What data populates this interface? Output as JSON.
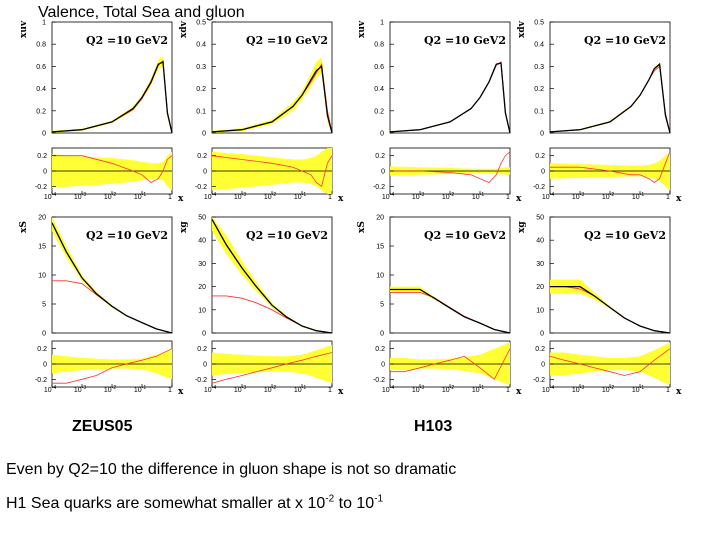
{
  "slide": {
    "title": "Valence, Total Sea and gluon",
    "fit_labels": [
      "ZEUS05",
      "H103"
    ],
    "note1": "Even by Q2=10 the difference in gluon shape is not so dramatic",
    "note2_pre": "H1 Sea quarks are somewhat smaller at  x 10",
    "note2_exp1": "-2",
    "note2_mid": " to 10",
    "note2_exp2": "-1"
  },
  "colors": {
    "band": "#ffff33",
    "central": "#000000",
    "comparison": "#ff3333"
  },
  "chart_data": [
    {
      "id": "zeus-xuv",
      "type": "line",
      "fit": "ZEUS05",
      "ylabel": "xuv",
      "q2_label": "Q2 =10 GeV2",
      "x_scale": "log",
      "xlim": [
        0.0001,
        1
      ],
      "ylim": [
        0,
        1
      ],
      "yticks": [
        0,
        0.2,
        0.4,
        0.6,
        0.8,
        1
      ],
      "x": [
        0.0001,
        0.001,
        0.01,
        0.05,
        0.1,
        0.2,
        0.35,
        0.5,
        0.7,
        1
      ],
      "central": [
        0.01,
        0.03,
        0.1,
        0.22,
        0.32,
        0.46,
        0.62,
        0.64,
        0.18,
        0.0
      ],
      "band_low": [
        0.0,
        0.02,
        0.09,
        0.2,
        0.3,
        0.43,
        0.58,
        0.59,
        0.14,
        0.0
      ],
      "band_high": [
        0.02,
        0.04,
        0.11,
        0.24,
        0.34,
        0.49,
        0.66,
        0.69,
        0.22,
        0.0
      ],
      "comparison": [
        0.01,
        0.03,
        0.1,
        0.21,
        0.31,
        0.45,
        0.61,
        0.65,
        0.19,
        0.0
      ],
      "ratio": {
        "ylim": [
          -0.3,
          0.3
        ],
        "yticks": [
          -0.2,
          0,
          0.2
        ],
        "band_low": [
          -0.22,
          -0.19,
          -0.17,
          -0.14,
          -0.12,
          -0.1,
          -0.1,
          -0.12,
          -0.2,
          -0.25
        ],
        "band_high": [
          0.22,
          0.19,
          0.17,
          0.14,
          0.12,
          0.1,
          0.1,
          0.12,
          0.2,
          0.25
        ],
        "comparison": [
          0.2,
          0.2,
          0.1,
          0.0,
          -0.05,
          -0.15,
          -0.1,
          0.0,
          0.15,
          0.2
        ]
      }
    },
    {
      "id": "zeus-xdv",
      "type": "line",
      "fit": "ZEUS05",
      "ylabel": "xdv",
      "q2_label": "Q2 =10 GeV2",
      "x_scale": "log",
      "xlim": [
        0.0001,
        1
      ],
      "ylim": [
        0,
        0.5
      ],
      "yticks": [
        0,
        0.1,
        0.2,
        0.3,
        0.4,
        0.5
      ],
      "x": [
        0.0001,
        0.001,
        0.01,
        0.05,
        0.1,
        0.2,
        0.3,
        0.45,
        0.7,
        1
      ],
      "central": [
        0.005,
        0.015,
        0.05,
        0.12,
        0.17,
        0.24,
        0.28,
        0.3,
        0.08,
        0.0
      ],
      "band_low": [
        0.0,
        0.008,
        0.04,
        0.1,
        0.15,
        0.21,
        0.25,
        0.27,
        0.05,
        0.0
      ],
      "band_high": [
        0.01,
        0.022,
        0.06,
        0.14,
        0.19,
        0.27,
        0.32,
        0.34,
        0.11,
        0.0
      ],
      "comparison": [
        0.005,
        0.015,
        0.05,
        0.12,
        0.17,
        0.23,
        0.27,
        0.31,
        0.1,
        0.0
      ],
      "ratio": {
        "ylim": [
          -0.3,
          0.3
        ],
        "yticks": [
          -0.2,
          0,
          0.2
        ],
        "band_low": [
          -0.25,
          -0.22,
          -0.18,
          -0.15,
          -0.15,
          -0.17,
          -0.2,
          -0.25,
          -0.3,
          -0.3
        ],
        "band_high": [
          0.25,
          0.22,
          0.18,
          0.15,
          0.15,
          0.17,
          0.2,
          0.25,
          0.3,
          0.3
        ],
        "comparison": [
          0.2,
          0.15,
          0.1,
          0.05,
          0.0,
          -0.05,
          -0.15,
          -0.2,
          0.1,
          0.2
        ]
      }
    },
    {
      "id": "h1-xuv",
      "type": "line",
      "fit": "H103",
      "ylabel": "xuv",
      "q2_label": "Q2 =10 GeV2",
      "x_scale": "log",
      "xlim": [
        0.0001,
        1
      ],
      "ylim": [
        0,
        1
      ],
      "yticks": [
        0,
        0.2,
        0.4,
        0.6,
        0.8,
        1
      ],
      "x": [
        0.0001,
        0.001,
        0.01,
        0.05,
        0.1,
        0.2,
        0.35,
        0.5,
        0.7,
        1
      ],
      "central": [
        0.01,
        0.03,
        0.1,
        0.22,
        0.32,
        0.46,
        0.62,
        0.63,
        0.18,
        0.0
      ],
      "band_low": [
        0.005,
        0.025,
        0.095,
        0.215,
        0.315,
        0.455,
        0.615,
        0.625,
        0.175,
        0.0
      ],
      "band_high": [
        0.015,
        0.035,
        0.105,
        0.225,
        0.325,
        0.465,
        0.625,
        0.635,
        0.185,
        0.0
      ],
      "comparison": [
        0.01,
        0.03,
        0.1,
        0.22,
        0.32,
        0.46,
        0.61,
        0.64,
        0.19,
        0.0
      ],
      "ratio": {
        "ylim": [
          -0.3,
          0.3
        ],
        "yticks": [
          -0.2,
          0,
          0.2
        ],
        "band_low": [
          -0.06,
          -0.05,
          -0.04,
          -0.03,
          -0.03,
          -0.03,
          -0.03,
          -0.04,
          -0.05,
          -0.05
        ],
        "band_high": [
          0.06,
          0.05,
          0.04,
          0.03,
          0.03,
          0.03,
          0.03,
          0.04,
          0.05,
          0.05
        ],
        "comparison": [
          0.0,
          0.0,
          -0.02,
          -0.05,
          -0.1,
          -0.15,
          -0.05,
          0.1,
          0.2,
          0.25
        ]
      }
    },
    {
      "id": "h1-xdv",
      "type": "line",
      "fit": "H103",
      "ylabel": "xdv",
      "q2_label": "Q2 =10 GeV2",
      "x_scale": "log",
      "xlim": [
        0.0001,
        1
      ],
      "ylim": [
        0,
        0.5
      ],
      "yticks": [
        0,
        0.1,
        0.2,
        0.3,
        0.4,
        0.5
      ],
      "x": [
        0.0001,
        0.001,
        0.01,
        0.05,
        0.1,
        0.2,
        0.3,
        0.45,
        0.7,
        1
      ],
      "central": [
        0.005,
        0.015,
        0.05,
        0.12,
        0.17,
        0.24,
        0.29,
        0.31,
        0.08,
        0.0
      ],
      "band_low": [
        0.003,
        0.012,
        0.046,
        0.115,
        0.165,
        0.235,
        0.283,
        0.303,
        0.07,
        0.0
      ],
      "band_high": [
        0.007,
        0.018,
        0.054,
        0.125,
        0.175,
        0.245,
        0.297,
        0.317,
        0.09,
        0.0
      ],
      "comparison": [
        0.005,
        0.015,
        0.05,
        0.12,
        0.17,
        0.24,
        0.28,
        0.3,
        0.09,
        0.0
      ],
      "ratio": {
        "ylim": [
          -0.3,
          0.3
        ],
        "yticks": [
          -0.2,
          0,
          0.2
        ],
        "band_low": [
          -0.1,
          -0.09,
          -0.08,
          -0.07,
          -0.07,
          -0.08,
          -0.1,
          -0.13,
          -0.2,
          -0.25
        ],
        "band_high": [
          0.1,
          0.09,
          0.08,
          0.07,
          0.07,
          0.08,
          0.1,
          0.13,
          0.2,
          0.25
        ],
        "comparison": [
          0.05,
          0.05,
          0.0,
          -0.05,
          -0.05,
          -0.1,
          -0.15,
          -0.1,
          0.1,
          0.25
        ]
      }
    },
    {
      "id": "zeus-xs",
      "type": "line",
      "fit": "ZEUS05",
      "ylabel": "xS",
      "q2_label": "Q2 =10 GeV2",
      "x_scale": "log",
      "xlim": [
        0.0001,
        1
      ],
      "ylim": [
        0,
        20
      ],
      "yticks": [
        0,
        5,
        10,
        15,
        20
      ],
      "x": [
        0.0001,
        0.0003,
        0.001,
        0.003,
        0.01,
        0.03,
        0.1,
        0.3,
        1
      ],
      "central": [
        19,
        14,
        9.5,
        6.8,
        4.6,
        3.0,
        1.8,
        0.7,
        0.0
      ],
      "band_low": [
        17.5,
        13,
        9.0,
        6.5,
        4.4,
        2.9,
        1.7,
        0.6,
        0.0
      ],
      "band_high": [
        20.5,
        15,
        10.0,
        7.1,
        4.8,
        3.1,
        1.9,
        0.8,
        0.0
      ],
      "comparison": [
        9,
        9,
        8.5,
        6.6,
        4.6,
        3.0,
        1.8,
        0.7,
        0.0
      ],
      "ratio": {
        "ylim": [
          -0.3,
          0.3
        ],
        "yticks": [
          -0.2,
          0,
          0.2
        ],
        "band_low": [
          -0.12,
          -0.1,
          -0.08,
          -0.07,
          -0.06,
          -0.06,
          -0.07,
          -0.12,
          -0.2
        ],
        "band_high": [
          0.12,
          0.1,
          0.08,
          0.07,
          0.06,
          0.06,
          0.07,
          0.12,
          0.2
        ],
        "comparison": [
          -0.25,
          -0.25,
          -0.2,
          -0.15,
          -0.05,
          0.0,
          0.05,
          0.1,
          0.2
        ]
      }
    },
    {
      "id": "zeus-xg",
      "type": "line",
      "fit": "ZEUS05",
      "ylabel": "xg",
      "q2_label": "Q2 =10 GeV2",
      "x_scale": "log",
      "xlim": [
        0.0001,
        1
      ],
      "ylim": [
        0,
        50
      ],
      "yticks": [
        0,
        10,
        20,
        30,
        40,
        50
      ],
      "x": [
        0.0001,
        0.0003,
        0.001,
        0.003,
        0.01,
        0.03,
        0.1,
        0.3,
        1
      ],
      "central": [
        49,
        38,
        28,
        20,
        12,
        7,
        3,
        1,
        0.0
      ],
      "band_low": [
        44,
        34,
        25,
        18,
        11,
        6.5,
        2.7,
        0.8,
        0.0
      ],
      "band_high": [
        54,
        42,
        31,
        22,
        13,
        7.5,
        3.3,
        1.2,
        0.0
      ],
      "comparison": [
        16,
        16,
        15,
        13,
        10,
        6.5,
        3,
        1,
        0.0
      ],
      "ratio": {
        "ylim": [
          -0.3,
          0.3
        ],
        "yticks": [
          -0.2,
          0,
          0.2
        ],
        "band_low": [
          -0.15,
          -0.13,
          -0.12,
          -0.11,
          -0.1,
          -0.1,
          -0.12,
          -0.18,
          -0.25
        ],
        "band_high": [
          0.15,
          0.13,
          0.12,
          0.11,
          0.1,
          0.1,
          0.12,
          0.18,
          0.25
        ],
        "comparison": [
          -0.25,
          -0.2,
          -0.15,
          -0.1,
          -0.05,
          0.0,
          0.05,
          0.1,
          0.15
        ]
      }
    },
    {
      "id": "h1-xs",
      "type": "line",
      "fit": "H103",
      "ylabel": "xS",
      "q2_label": "Q2 =10 GeV2",
      "x_scale": "log",
      "xlim": [
        0.0001,
        1
      ],
      "ylim": [
        0,
        20
      ],
      "yticks": [
        0,
        5,
        10,
        15,
        20
      ],
      "x": [
        0.0001,
        0.0003,
        0.001,
        0.003,
        0.01,
        0.03,
        0.1,
        0.3,
        1
      ],
      "central": [
        7.5,
        7.5,
        7.5,
        6.0,
        4.3,
        2.8,
        1.7,
        0.6,
        0.0
      ],
      "band_low": [
        7.0,
        7.0,
        7.0,
        5.8,
        4.2,
        2.7,
        1.6,
        0.5,
        0.0
      ],
      "band_high": [
        8.0,
        8.0,
        8.0,
        6.2,
        4.4,
        2.9,
        1.8,
        0.7,
        0.0
      ],
      "comparison": [
        7.0,
        7.0,
        7.0,
        6.1,
        4.4,
        2.9,
        1.7,
        0.6,
        0.0
      ],
      "ratio": {
        "ylim": [
          -0.3,
          0.3
        ],
        "yticks": [
          -0.2,
          0,
          0.2
        ],
        "band_low": [
          -0.08,
          -0.08,
          -0.06,
          -0.06,
          -0.07,
          -0.09,
          -0.12,
          -0.2,
          -0.28
        ],
        "band_high": [
          0.08,
          0.08,
          0.06,
          0.06,
          0.07,
          0.09,
          0.12,
          0.2,
          0.28
        ],
        "comparison": [
          -0.1,
          -0.1,
          -0.05,
          0.0,
          0.05,
          0.1,
          -0.05,
          -0.2,
          0.2
        ]
      }
    },
    {
      "id": "h1-xg",
      "type": "line",
      "fit": "H103",
      "ylabel": "xg",
      "q2_label": "Q2 =10 GeV2",
      "x_scale": "log",
      "xlim": [
        0.0001,
        1
      ],
      "ylim": [
        0,
        50
      ],
      "yticks": [
        0,
        10,
        20,
        30,
        40,
        50
      ],
      "x": [
        0.0001,
        0.0003,
        0.001,
        0.003,
        0.01,
        0.03,
        0.1,
        0.3,
        1
      ],
      "central": [
        20,
        20,
        20,
        16,
        11,
        6.5,
        3,
        1,
        0.0
      ],
      "band_low": [
        17,
        17,
        17,
        14.5,
        10.5,
        6.2,
        2.8,
        0.8,
        0.0
      ],
      "band_high": [
        23,
        23,
        23,
        17.5,
        11.5,
        6.8,
        3.2,
        1.2,
        0.0
      ],
      "comparison": [
        20,
        20,
        19,
        16,
        11,
        6.5,
        3,
        1,
        0.0
      ],
      "ratio": {
        "ylim": [
          -0.3,
          0.3
        ],
        "yticks": [
          -0.2,
          0,
          0.2
        ],
        "band_low": [
          -0.15,
          -0.15,
          -0.12,
          -0.1,
          -0.08,
          -0.08,
          -0.1,
          -0.18,
          -0.28
        ],
        "band_high": [
          0.15,
          0.15,
          0.12,
          0.1,
          0.08,
          0.08,
          0.1,
          0.18,
          0.28
        ],
        "comparison": [
          0.1,
          0.05,
          0.0,
          -0.05,
          -0.1,
          -0.15,
          -0.1,
          0.05,
          0.2
        ]
      }
    }
  ]
}
